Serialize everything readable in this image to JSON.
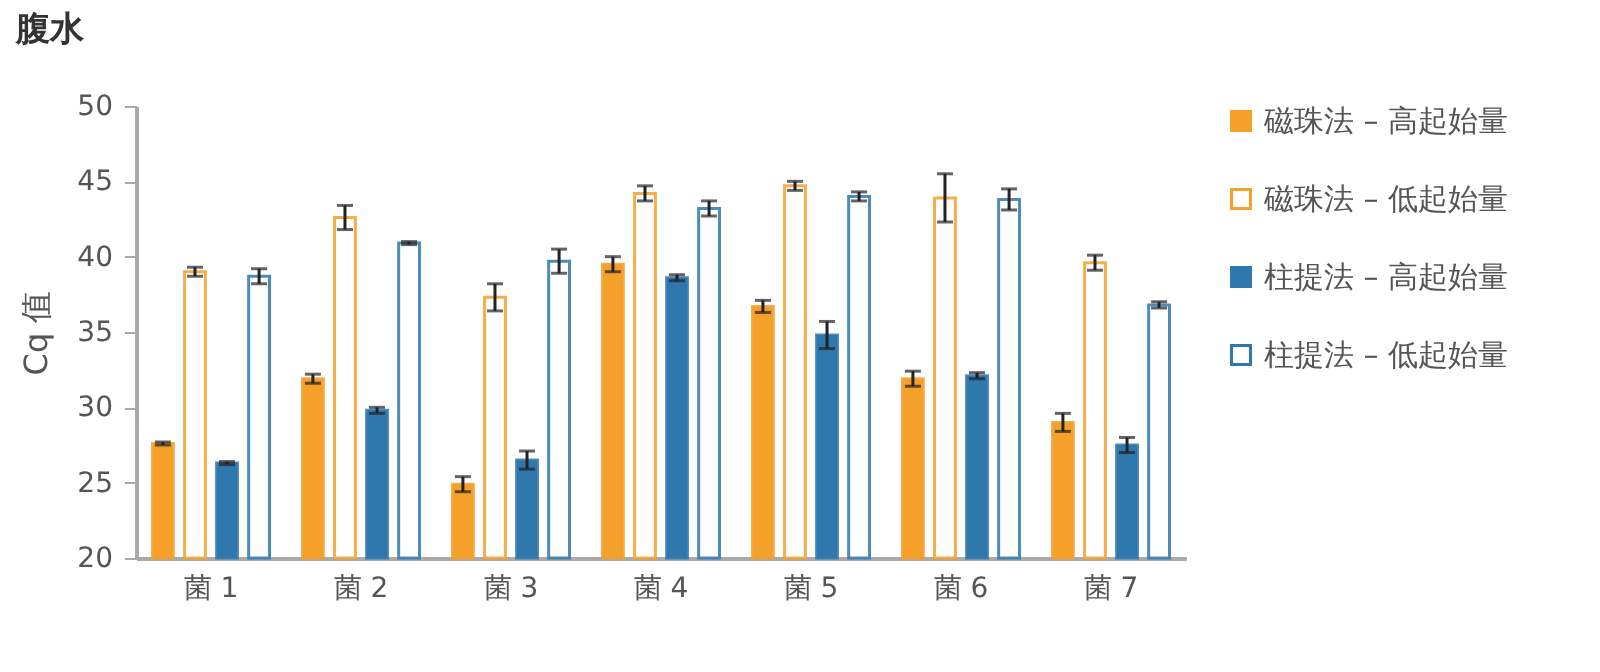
{
  "chart_data": {
    "type": "bar",
    "title": "腹水",
    "ylabel": "Cq 值",
    "categories": [
      "菌 1",
      "菌 2",
      "菌 3",
      "菌 4",
      "菌 5",
      "菌 6",
      "菌 7"
    ],
    "series": [
      {
        "name": "磁珠法 – 高起始量",
        "color": "#f5a02a",
        "values": [
          27.6,
          31.9,
          24.9,
          39.5,
          36.7,
          31.9,
          29.0
        ],
        "errors": [
          0.1,
          0.3,
          0.5,
          0.5,
          0.4,
          0.5,
          0.6
        ]
      },
      {
        "name": "磁珠法 – 低起始量",
        "color": "#f5a02a",
        "values": [
          39.0,
          42.6,
          37.3,
          44.2,
          44.7,
          43.9,
          39.6
        ],
        "errors": [
          0.3,
          0.8,
          0.9,
          0.5,
          0.3,
          1.6,
          0.5
        ]
      },
      {
        "name": "柱提法 – 高起始量",
        "color": "#2e78ad",
        "values": [
          26.3,
          29.8,
          26.5,
          38.6,
          34.8,
          32.1,
          27.5
        ],
        "errors": [
          0.1,
          0.2,
          0.6,
          0.2,
          0.9,
          0.2,
          0.5
        ]
      },
      {
        "name": "柱提法 – 低起始量",
        "color": "#2e78ad",
        "values": [
          38.7,
          40.9,
          39.7,
          43.2,
          44.0,
          43.8,
          36.8
        ],
        "errors": [
          0.5,
          0.1,
          0.8,
          0.5,
          0.3,
          0.7,
          0.2
        ]
      }
    ],
    "ylim": [
      20,
      50
    ],
    "yticks": [
      20,
      25,
      30,
      35,
      40,
      45,
      50
    ],
    "grid": false,
    "legend": "right"
  }
}
